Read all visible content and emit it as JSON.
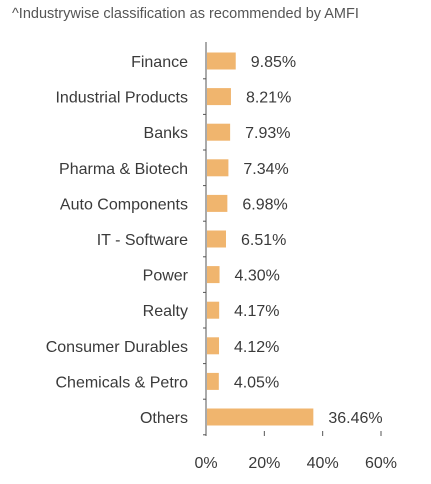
{
  "footnote": "^Industrywise classification as recommended by AMFI",
  "chart_data": {
    "type": "bar",
    "orientation": "horizontal",
    "categories": [
      "Finance",
      "Industrial Products",
      "Banks",
      "Pharma & Biotech",
      "Auto Components",
      "IT - Software",
      "Power",
      "Realty",
      "Consumer Durables",
      "Chemicals & Petro",
      "Others"
    ],
    "values": [
      9.85,
      8.21,
      7.93,
      7.34,
      6.98,
      6.51,
      4.3,
      4.17,
      4.12,
      4.05,
      36.46
    ],
    "value_labels": [
      "9.85%",
      "8.21%",
      "7.93%",
      "7.34%",
      "6.98%",
      "6.51%",
      "4.30%",
      "4.17%",
      "4.12%",
      "4.05%",
      "36.46%"
    ],
    "xlim": [
      0,
      60
    ],
    "xticks": [
      0,
      20,
      40,
      60
    ],
    "xtick_labels": [
      "0%",
      "20%",
      "40%",
      "60%"
    ],
    "bar_color": "#F0B56E",
    "axis_color": "#555555",
    "grid": false
  }
}
